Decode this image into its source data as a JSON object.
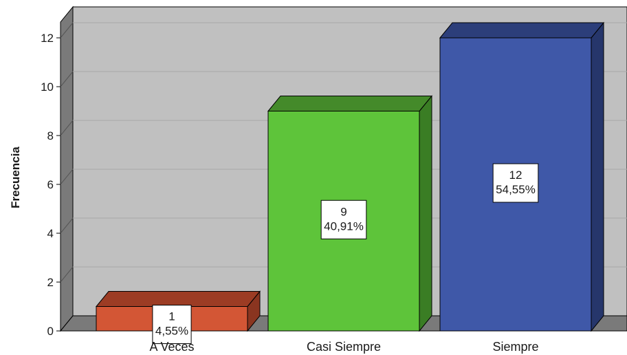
{
  "chart_data": {
    "type": "bar",
    "title": "",
    "ylabel": "Frecuencia",
    "xlabel": "",
    "ylim": [
      0,
      12
    ],
    "yticks": [
      0,
      2,
      4,
      6,
      8,
      10,
      12
    ],
    "grid": true,
    "categories": [
      "A Veces",
      "Casi Siempre",
      "Siempre"
    ],
    "values": [
      1,
      9,
      12
    ],
    "percent_labels": [
      "4,55%",
      "40,91%",
      "54,55%"
    ],
    "count_labels": [
      "1",
      "9",
      "12"
    ],
    "colors": [
      "#d35635",
      "#5ec43a",
      "#3f58a8"
    ],
    "colors_side": [
      "#8a3520",
      "#3a7d24",
      "#26366b"
    ],
    "colors_top": [
      "#9c3c24",
      "#448a2a",
      "#2c3e7a"
    ],
    "wall_color": "#c0c0c0",
    "floor_color": "#7a7a7a"
  }
}
